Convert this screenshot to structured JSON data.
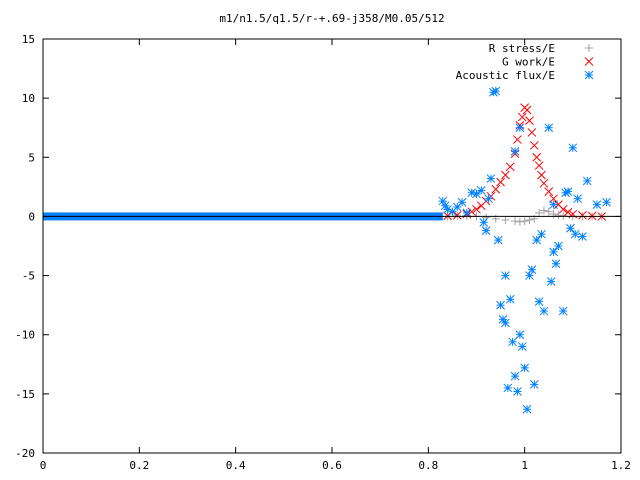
{
  "chart_data": {
    "type": "scatter",
    "title": "m1/n1.5/q1.5/r-+.69-j358/M0.05/512",
    "xlabel": "",
    "ylabel": "",
    "xlim": [
      0,
      1.2
    ],
    "ylim": [
      -20,
      15
    ],
    "x_ticks": [
      0,
      0.2,
      0.4,
      0.6,
      0.8,
      1,
      1.2
    ],
    "x_tick_labels": [
      "0",
      "0.2",
      "0.4",
      "0.6",
      "0.8",
      "1",
      "1.2"
    ],
    "y_ticks": [
      -20,
      -15,
      -10,
      -5,
      0,
      5,
      10,
      15
    ],
    "y_tick_labels": [
      "-20",
      "-15",
      "-10",
      "-5",
      "0",
      "5",
      "10",
      "15"
    ],
    "grid": false,
    "legend_position": "top-right",
    "series": [
      {
        "name": "R stress/E",
        "marker": "plus",
        "color": "#a0a0a4",
        "points": [
          [
            0.84,
            0.0
          ],
          [
            0.86,
            0.05
          ],
          [
            0.88,
            0.05
          ],
          [
            0.9,
            0.0
          ],
          [
            0.92,
            -0.1
          ],
          [
            0.94,
            -0.2
          ],
          [
            0.96,
            -0.3
          ],
          [
            0.98,
            -0.4
          ],
          [
            0.99,
            -0.45
          ],
          [
            1.0,
            -0.4
          ],
          [
            1.01,
            -0.3
          ],
          [
            1.02,
            -0.2
          ],
          [
            1.03,
            0.3
          ],
          [
            1.04,
            0.5
          ],
          [
            1.05,
            0.4
          ],
          [
            1.06,
            0.2
          ],
          [
            1.07,
            0.1
          ],
          [
            1.08,
            0.05
          ],
          [
            1.1,
            0.0
          ],
          [
            1.12,
            0.0
          ],
          [
            1.14,
            0.0
          ],
          [
            1.16,
            0.0
          ]
        ]
      },
      {
        "name": "G work/E",
        "marker": "cross",
        "color": "#ff0000",
        "points": [
          [
            0.84,
            0.05
          ],
          [
            0.86,
            0.1
          ],
          [
            0.88,
            0.2
          ],
          [
            0.89,
            0.4
          ],
          [
            0.9,
            0.6
          ],
          [
            0.91,
            0.9
          ],
          [
            0.92,
            1.3
          ],
          [
            0.93,
            1.7
          ],
          [
            0.94,
            2.3
          ],
          [
            0.95,
            2.9
          ],
          [
            0.96,
            3.5
          ],
          [
            0.97,
            4.2
          ],
          [
            0.98,
            5.3
          ],
          [
            0.985,
            6.5
          ],
          [
            0.99,
            7.7
          ],
          [
            0.995,
            8.4
          ],
          [
            1.0,
            9.2
          ],
          [
            1.005,
            9.0
          ],
          [
            1.01,
            8.1
          ],
          [
            1.015,
            7.1
          ],
          [
            1.02,
            6.0
          ],
          [
            1.025,
            5.0
          ],
          [
            1.03,
            4.3
          ],
          [
            1.035,
            3.5
          ],
          [
            1.04,
            2.8
          ],
          [
            1.05,
            2.1
          ],
          [
            1.06,
            1.5
          ],
          [
            1.07,
            1.0
          ],
          [
            1.08,
            0.6
          ],
          [
            1.09,
            0.35
          ],
          [
            1.1,
            0.2
          ],
          [
            1.12,
            0.1
          ],
          [
            1.14,
            0.05
          ],
          [
            1.16,
            0.0
          ]
        ]
      },
      {
        "name": "Acoustic flux/E",
        "marker": "star",
        "color": "#0080ff",
        "points": [
          [
            0.83,
            1.3
          ],
          [
            0.835,
            0.9
          ],
          [
            0.84,
            0.6
          ],
          [
            0.85,
            0.4
          ],
          [
            0.86,
            0.8
          ],
          [
            0.87,
            1.2
          ],
          [
            0.88,
            0.3
          ],
          [
            0.89,
            2.0
          ],
          [
            0.9,
            1.9
          ],
          [
            0.91,
            2.2
          ],
          [
            0.915,
            -0.5
          ],
          [
            0.92,
            -1.2
          ],
          [
            0.925,
            1.5
          ],
          [
            0.93,
            3.2
          ],
          [
            0.935,
            10.5
          ],
          [
            0.94,
            10.6
          ],
          [
            0.945,
            -2.0
          ],
          [
            0.95,
            -7.5
          ],
          [
            0.955,
            -8.7
          ],
          [
            0.96,
            -9.0
          ],
          [
            0.965,
            -14.5
          ],
          [
            0.97,
            -7.0
          ],
          [
            0.975,
            -10.6
          ],
          [
            0.98,
            -13.5
          ],
          [
            0.985,
            -14.8
          ],
          [
            0.99,
            -10.0
          ],
          [
            0.995,
            -11.0
          ],
          [
            1.0,
            -12.8
          ],
          [
            1.005,
            -16.3
          ],
          [
            1.01,
            -5.0
          ],
          [
            1.015,
            -4.5
          ],
          [
            1.02,
            -14.2
          ],
          [
            1.025,
            -2.0
          ],
          [
            1.03,
            -7.2
          ],
          [
            1.035,
            -1.5
          ],
          [
            1.04,
            -8.0
          ],
          [
            1.05,
            7.5
          ],
          [
            1.055,
            -5.5
          ],
          [
            1.06,
            -3.0
          ],
          [
            1.065,
            -4.0
          ],
          [
            1.07,
            -2.5
          ],
          [
            1.08,
            -8.0
          ],
          [
            1.085,
            2.0
          ],
          [
            1.09,
            2.1
          ],
          [
            1.095,
            -1.0
          ],
          [
            1.1,
            5.8
          ],
          [
            1.105,
            -1.5
          ],
          [
            1.11,
            1.5
          ],
          [
            1.12,
            -1.7
          ],
          [
            1.13,
            3.0
          ],
          [
            1.15,
            1.0
          ],
          [
            1.17,
            1.2
          ],
          [
            0.99,
            7.5
          ],
          [
            1.06,
            1.0
          ],
          [
            0.98,
            5.5
          ],
          [
            0.96,
            -5.0
          ]
        ],
        "baseline_line": {
          "x": [
            0,
            0.83
          ],
          "y": 0
        }
      }
    ]
  }
}
